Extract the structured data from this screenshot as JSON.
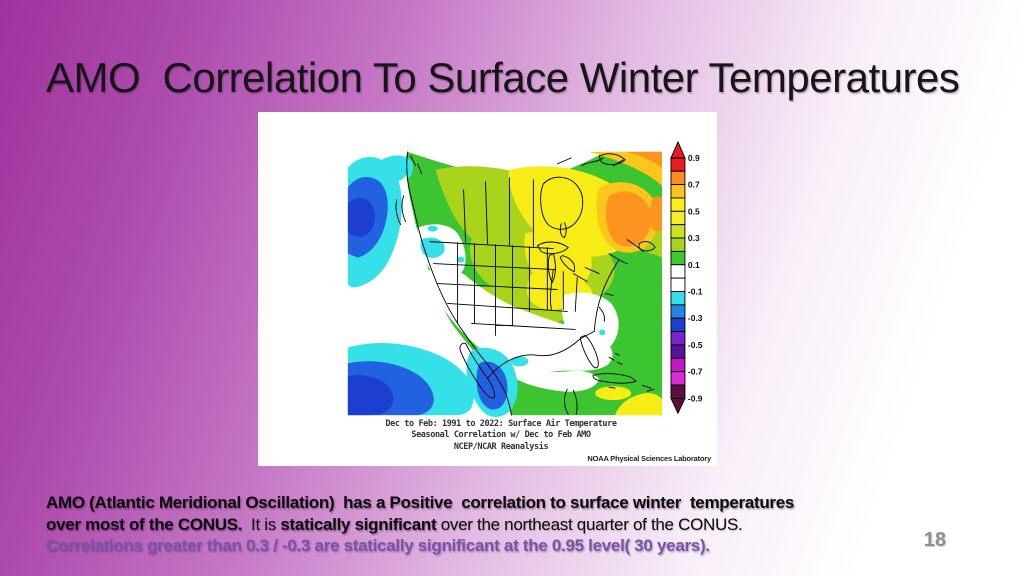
{
  "slide": {
    "title": "AMO  Correlation To Surface Winter Temperatures",
    "page_number": "18",
    "body": {
      "line1": "AMO (Atlantic Meridional Oscillation)  has a Positive  correlation to surface winter  temperatures",
      "line2_bold1": "over most of the CONUS.",
      "line2_reg1": "  It is ",
      "line2_bold2": "statically significant",
      "line2_reg2": " over the northeast quarter of the CONUS.",
      "line3": "Correlations greater than 0.3 / -0.3 are statically significant at the 0.95 level( 30 years)."
    },
    "theme": {
      "background_top_left": "#9e339e",
      "background_bottom_right": "#ffffff",
      "title_color": "#161616",
      "body_purple": "#7a52a6",
      "page_number_color": "#909090",
      "panel_color": "#ffffff"
    }
  },
  "figure": {
    "caption_line1": "Dec to Feb: 1991 to 2022: Surface Air Temperature",
    "caption_line2": "Seasonal Correlation w/ Dec to Feb AMO",
    "caption_line3": "NCEP/NCAR Reanalysis",
    "credit": "NOAA Physical Sciences Laboratory"
  },
  "chart_data": {
    "type": "heatmap",
    "subtype": "filled-contour-correlation-map",
    "region_shown": "North America (CONUS, Canada, Mexico, adjacent oceans)",
    "title": "Dec to Feb: 1991 to 2022: Surface Air Temperature Seasonal Correlation w/ Dec to Feb AMO",
    "source": "NCEP/NCAR Reanalysis, NOAA Physical Sciences Laboratory",
    "variable": "correlation coefficient",
    "colorbar": {
      "orientation": "vertical",
      "tick_labels": [
        "0.9",
        "0.7",
        "0.5",
        "0.3",
        "0.1",
        "-0.1",
        "-0.3",
        "-0.5",
        "-0.7",
        "-0.9"
      ],
      "levels_top_to_bottom": [
        0.9,
        0.8,
        0.7,
        0.6,
        0.5,
        0.4,
        0.3,
        0.2,
        0.1,
        0.0,
        -0.1,
        -0.2,
        -0.3,
        -0.4,
        -0.5,
        -0.6,
        -0.7,
        -0.8,
        -0.9
      ],
      "segment_colors": [
        "#e81c1c",
        "#fd8d21",
        "#fdc31e",
        "#f9ee1b",
        "#f2ee2a",
        "#cfe01e",
        "#a8d41e",
        "#3fc832",
        "#ffffff",
        "#ffffff",
        "#35e0e8",
        "#2287e0",
        "#1d3fd0",
        "#7a22cc",
        "#551499",
        "#c418c4",
        "#da2ada",
        "#5c0f3a"
      ],
      "arrow_top_color": "#e81c1c",
      "arrow_bottom_color": "#5c0f3a"
    },
    "map_regions": [
      {
        "area": "Northeast Canada (Quebec / Labrador)",
        "correlation": "0.5 to 0.7"
      },
      {
        "area": "Central Canada and Hudson Bay",
        "correlation": "0.4 to 0.6"
      },
      {
        "area": "Great Lakes / Ohio Valley / Northeast US",
        "correlation": "0.3 to 0.5"
      },
      {
        "area": "Northern plains and most of the CONUS",
        "correlation": "0.1 to 0.3"
      },
      {
        "area": "Pacific Northwest interior, Southwest US, Texas, Gulf Coast, Florida",
        "correlation": "-0.1 to 0.1 (not significant)"
      },
      {
        "area": "NE Pacific off British Columbia",
        "correlation": "-0.2 to -0.4"
      },
      {
        "area": "Tropical Pacific southwest of Mexico",
        "correlation": "-0.2 to -0.4"
      },
      {
        "area": "Western Gulf of Mexico / south Texas",
        "correlation": "-0.1 to -0.3"
      },
      {
        "area": "Caribbean and western Atlantic",
        "correlation": "0.1 to 0.5"
      }
    ]
  }
}
